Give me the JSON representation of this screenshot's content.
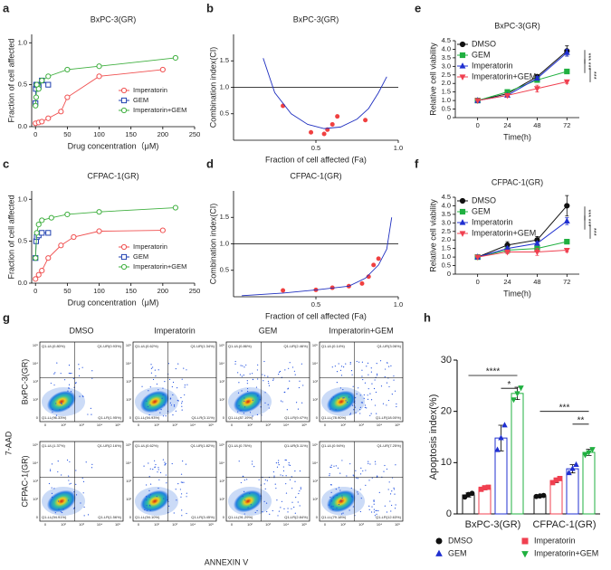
{
  "chart_data": [
    {
      "label": "a",
      "type": "scatter",
      "title": "BxPC-3(GR)",
      "x_label": "Drug concentration（μM)",
      "y_label": "Fraction of cell affected",
      "xlim": [
        -6,
        250
      ],
      "xticks": [
        0,
        50,
        100,
        150,
        200,
        250
      ],
      "ylim": [
        0,
        1.1
      ],
      "yticks": [
        {
          "value": 0,
          "label": "0.0"
        },
        0.5,
        {
          "value": 1,
          "label": "1.0"
        }
      ],
      "legend": "lower right",
      "series": [
        {
          "name": "Imperatorin",
          "color": "#f05050",
          "marker": "circle",
          "x": [
            0,
            5,
            10,
            20,
            40,
            50,
            100,
            200
          ],
          "values": [
            0.04,
            0.05,
            0.06,
            0.1,
            0.18,
            0.35,
            0.6,
            0.68
          ]
        },
        {
          "name": "GEM",
          "color": "#2040b0",
          "marker": "square",
          "x": [
            0,
            0.5,
            1,
            2,
            5,
            10,
            20
          ],
          "values": [
            0.28,
            0.45,
            0.5,
            0.5,
            0.48,
            0.55,
            0.5
          ]
        },
        {
          "name": "Imperatorin+GEM",
          "color": "#40b040",
          "marker": "circle",
          "x": [
            0,
            1,
            2,
            5,
            10,
            20,
            50,
            100,
            220
          ],
          "values": [
            0.25,
            0.35,
            0.5,
            0.45,
            0.55,
            0.6,
            0.68,
            0.72,
            0.82
          ]
        }
      ]
    },
    {
      "label": "b",
      "type": "ci",
      "title": "BxPC-3(GR)",
      "x_label": "Fraction of cell affected (Fa)",
      "y_label": "Combination index(CI)",
      "xlim": [
        0,
        1
      ],
      "xticks": [
        0.5,
        {
          "value": 1,
          "label": "1.0"
        }
      ],
      "ylim": [
        0,
        2
      ],
      "yticks": [
        0.5,
        {
          "value": 1,
          "label": "1.0"
        },
        1.5
      ],
      "reference_line": 1,
      "series": [
        {
          "color": "#f04040",
          "marker": "dot",
          "x": [
            0.3,
            0.47,
            0.55,
            0.57,
            0.6,
            0.63,
            0.8
          ],
          "values": [
            0.65,
            0.15,
            0.12,
            0.2,
            0.3,
            0.45,
            0.38
          ]
        },
        {
          "color": "#2030c0",
          "marker": "none",
          "x": [
            0.18,
            0.25,
            0.35,
            0.45,
            0.55,
            0.65,
            0.75,
            0.82,
            0.88,
            0.93
          ],
          "values": [
            1.55,
            0.9,
            0.5,
            0.3,
            0.22,
            0.25,
            0.4,
            0.6,
            0.9,
            1.2
          ]
        }
      ]
    },
    {
      "label": "e",
      "type": "line",
      "title": "BxPC-3(GR)",
      "x_label": "Time(h)",
      "y_label": "Relative cell viability",
      "x": [
        0,
        24,
        48,
        72
      ],
      "xlim": [
        -18,
        82
      ],
      "xticks": [
        0,
        24,
        48,
        72
      ],
      "ylim": [
        0,
        4.5
      ],
      "yticks": [
        0,
        0.5,
        {
          "value": 1,
          "label": "1.0"
        },
        1.5,
        {
          "value": 2,
          "label": "2.0"
        },
        2.5,
        {
          "value": 3,
          "label": "3.0"
        },
        3.5,
        {
          "value": 4,
          "label": "4.0"
        },
        4.5
      ],
      "legend": "upper left",
      "annotations": [
        "***",
        "***",
        "***"
      ],
      "series": [
        {
          "name": "DMSO",
          "color": "#111111",
          "marker": "circle",
          "values": [
            1,
            1.4,
            2.4,
            3.9
          ],
          "errors": [
            0.02,
            0.05,
            0.1,
            0.3
          ]
        },
        {
          "name": "GEM",
          "color": "#20b040",
          "marker": "square",
          "values": [
            1,
            1.5,
            2.2,
            2.7
          ],
          "errors": [
            0.02,
            0.05,
            0.1,
            0.1
          ]
        },
        {
          "name": "Imperatorin",
          "color": "#2030d0",
          "marker": "triangle",
          "values": [
            1,
            1.3,
            2.3,
            3.8
          ],
          "errors": [
            0.02,
            0.05,
            0.1,
            0.2
          ]
        },
        {
          "name": "Imperatorin+GEM",
          "color": "#f04050",
          "marker": "down",
          "values": [
            1,
            1.3,
            1.7,
            2.1
          ],
          "errors": [
            0.02,
            0.1,
            0.2,
            0.1
          ]
        }
      ]
    },
    {
      "label": "c",
      "type": "scatter",
      "title": "CFPAC-1(GR)",
      "x_label": "Drug concentration（μM)",
      "y_label": "Fraction of cell affected",
      "xlim": [
        -6,
        250
      ],
      "xticks": [
        0,
        50,
        100,
        150,
        200,
        250
      ],
      "ylim": [
        0,
        1.1
      ],
      "yticks": [
        {
          "value": 0,
          "label": "0.0"
        },
        0.5,
        {
          "value": 1,
          "label": "1.0"
        }
      ],
      "legend": "lower right",
      "series": [
        {
          "name": "Imperatorin",
          "color": "#f05050",
          "marker": "circle",
          "x": [
            0,
            5,
            10,
            20,
            40,
            60,
            100,
            200
          ],
          "values": [
            0.05,
            0.1,
            0.15,
            0.3,
            0.45,
            0.55,
            0.62,
            0.63
          ]
        },
        {
          "name": "GEM",
          "color": "#2040b0",
          "marker": "square",
          "x": [
            0,
            1,
            2,
            5,
            10,
            20
          ],
          "values": [
            0.3,
            0.5,
            0.55,
            0.57,
            0.6,
            0.6
          ]
        },
        {
          "name": "Imperatorin+GEM",
          "color": "#40b040",
          "marker": "circle",
          "x": [
            0,
            2,
            5,
            10,
            25,
            50,
            100,
            220
          ],
          "values": [
            0.3,
            0.6,
            0.7,
            0.75,
            0.78,
            0.82,
            0.85,
            0.9
          ]
        }
      ]
    },
    {
      "label": "d",
      "type": "ci",
      "title": "CFPAC-1(GR)",
      "x_label": "Fraction of cell affected (Fa)",
      "y_label": "Combination index(CI)",
      "xlim": [
        0,
        1
      ],
      "xticks": [
        0.5,
        {
          "value": 1,
          "label": "1.0"
        }
      ],
      "ylim": [
        0,
        2
      ],
      "yticks": [
        0.5,
        {
          "value": 1,
          "label": "1.0"
        },
        1.5
      ],
      "reference_line": 1,
      "series": [
        {
          "color": "#f04040",
          "marker": "dot",
          "x": [
            0.3,
            0.5,
            0.6,
            0.7,
            0.78,
            0.82,
            0.85,
            0.88
          ],
          "values": [
            0.12,
            0.13,
            0.17,
            0.2,
            0.25,
            0.38,
            0.6,
            0.72
          ]
        },
        {
          "color": "#2030c0",
          "marker": "none",
          "x": [
            0.05,
            0.3,
            0.5,
            0.7,
            0.8,
            0.88,
            0.93,
            0.96
          ],
          "values": [
            0.02,
            0.07,
            0.13,
            0.2,
            0.35,
            0.6,
            0.9,
            1.5
          ]
        }
      ]
    },
    {
      "label": "f",
      "type": "line",
      "title": "CFPAC-1(GR)",
      "x_label": "Time(h)",
      "y_label": "Relative cell viability",
      "x": [
        0,
        24,
        48,
        72
      ],
      "xlim": [
        -18,
        82
      ],
      "xticks": [
        0,
        24,
        48,
        72
      ],
      "ylim": [
        0,
        4.5
      ],
      "yticks": [
        0,
        0.5,
        {
          "value": 1,
          "label": "1.0"
        },
        1.5,
        {
          "value": 2,
          "label": "2.0"
        },
        2.5,
        {
          "value": 3,
          "label": "3.0"
        },
        3.5,
        {
          "value": 4,
          "label": "4.0"
        },
        4.5
      ],
      "legend": "upper left",
      "annotations": [
        "***",
        "***",
        "***"
      ],
      "series": [
        {
          "name": "DMSO",
          "color": "#111111",
          "marker": "circle",
          "values": [
            1,
            1.7,
            2.0,
            4.0
          ],
          "errors": [
            0.02,
            0.2,
            0.2,
            0.6
          ]
        },
        {
          "name": "GEM",
          "color": "#20b040",
          "marker": "square",
          "values": [
            1,
            1.4,
            1.5,
            1.9
          ],
          "errors": [
            0.02,
            0.1,
            0.1,
            0.1
          ]
        },
        {
          "name": "Imperatorin",
          "color": "#2030d0",
          "marker": "triangle",
          "values": [
            1,
            1.5,
            1.8,
            3.1
          ],
          "errors": [
            0.02,
            0.1,
            0.1,
            0.2
          ]
        },
        {
          "name": "Imperatorin+GEM",
          "color": "#f04050",
          "marker": "down",
          "values": [
            1,
            1.3,
            1.3,
            1.4
          ],
          "errors": [
            0.02,
            0.1,
            0.2,
            0.1
          ]
        }
      ]
    },
    {
      "label": "g",
      "type": "flow",
      "x_label": "ANNEXIN V",
      "y_label": "7-AAD",
      "columns": [
        "DMSO",
        "Imperatorin",
        "GEM",
        "Imperatorin+GEM"
      ],
      "rows": [
        "BxPC-3(GR)",
        "CFPAC-1(GR)"
      ],
      "axis_ticks": [
        "0",
        "10²",
        "10³",
        "10⁴",
        "10⁵"
      ],
      "quadrants": [
        [
          [
            "Q1-UL(0.80%)",
            "Q1-UR(0.93%)",
            "Q1-LL(96.33%)",
            "Q1-LR(1.95%)"
          ],
          [
            "Q1-UL(0.62%)",
            "Q1-UR(1.34%)",
            "Q1-LL(94.93%)",
            "Q1-LR(3.11%)"
          ],
          [
            "Q1-UL(0.86%)",
            "Q1-UR(2.46%)",
            "Q1-LL(87.19%)",
            "Q1-LR(9.47%)"
          ],
          [
            "Q1-UL(0.14%)",
            "Q1-UR(3.06%)",
            "Q1-LL(78.90%)",
            "Q1-LR(18.00%)"
          ]
        ],
        [
          [
            "Q1-UL(1.37%)",
            "Q1-UR(2.16%)",
            "Q1-LL(94.91%)",
            "Q1-LR(1.56%)"
          ],
          [
            "Q1-UL(0.62%)",
            "Q1-UR(1.82%)",
            "Q1-LL(94.10%)",
            "Q1-LR(3.45%)"
          ],
          [
            "Q1-UL(0.76%)",
            "Q1-UR(5.11%)",
            "Q1-LL(91.29%)",
            "Q1-LR(2.84%)"
          ],
          [
            "Q1-UL(0.94%)",
            "Q1-UR(7.25%)",
            "Q1-LL(79.18%)",
            "Q1-LR(12.63%)"
          ]
        ]
      ]
    },
    {
      "label": "h",
      "type": "bar",
      "y_label": "Apoptosis index(%)",
      "categories": [
        "BxPC-3(GR)",
        "CFPAC-1(GR)"
      ],
      "ylim": [
        0,
        30
      ],
      "yticks": [
        0,
        10,
        20,
        30
      ],
      "legend": "below",
      "annotations": [
        "****",
        "*",
        "***",
        "**"
      ],
      "series": [
        {
          "name": "DMSO",
          "color": "#111111",
          "marker": "circle",
          "values": [
            3.7,
            3.5
          ],
          "errors": [
            0.4,
            0.2
          ],
          "points": [
            [
              3.3,
              3.8,
              4.0
            ],
            [
              3.4,
              3.5,
              3.6
            ]
          ]
        },
        {
          "name": "Imperatorin",
          "color": "#f04050",
          "marker": "square",
          "values": [
            5.0,
            6.5
          ],
          "errors": [
            0.3,
            0.4
          ],
          "points": [
            [
              4.8,
              5.1,
              5.2
            ],
            [
              6.1,
              6.6,
              6.9
            ]
          ]
        },
        {
          "name": "GEM",
          "color": "#2030d0",
          "marker": "triangle",
          "values": [
            14.8,
            8.8
          ],
          "errors": [
            2.5,
            0.8
          ],
          "points": [
            [
              12.5,
              14.8,
              17.3
            ],
            [
              8.0,
              8.8,
              9.6
            ]
          ]
        },
        {
          "name": "Imperatorin+GEM",
          "color": "#20b040",
          "marker": "down",
          "values": [
            23.5,
            12.0
          ],
          "errors": [
            1.2,
            0.6
          ],
          "points": [
            [
              22.3,
              23.5,
              24.6
            ],
            [
              11.5,
              12.0,
              12.6
            ]
          ]
        }
      ]
    }
  ]
}
